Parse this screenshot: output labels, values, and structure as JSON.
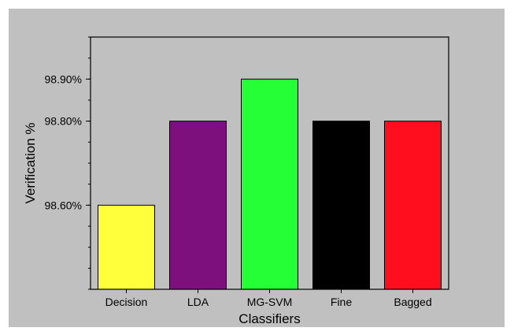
{
  "chart_data": {
    "type": "bar",
    "categories": [
      "Decision",
      "LDA",
      "MG-SVM",
      "Fine",
      "Bagged"
    ],
    "values": [
      98.6,
      98.8,
      98.9,
      98.8,
      98.8
    ],
    "colors": [
      "#ffff3c",
      "#7d107d",
      "#25ff35",
      "#000000",
      "#ff0f1e"
    ],
    "xlabel": "Classifiers",
    "ylabel": "Verification %",
    "ylim": [
      98.4,
      99.0
    ],
    "yticks": [
      98.6,
      98.8,
      98.9
    ],
    "ytick_labels": [
      "98.60%",
      "98.80%",
      "98.90%"
    ],
    "grid": false,
    "background": "#c0c0c0"
  }
}
